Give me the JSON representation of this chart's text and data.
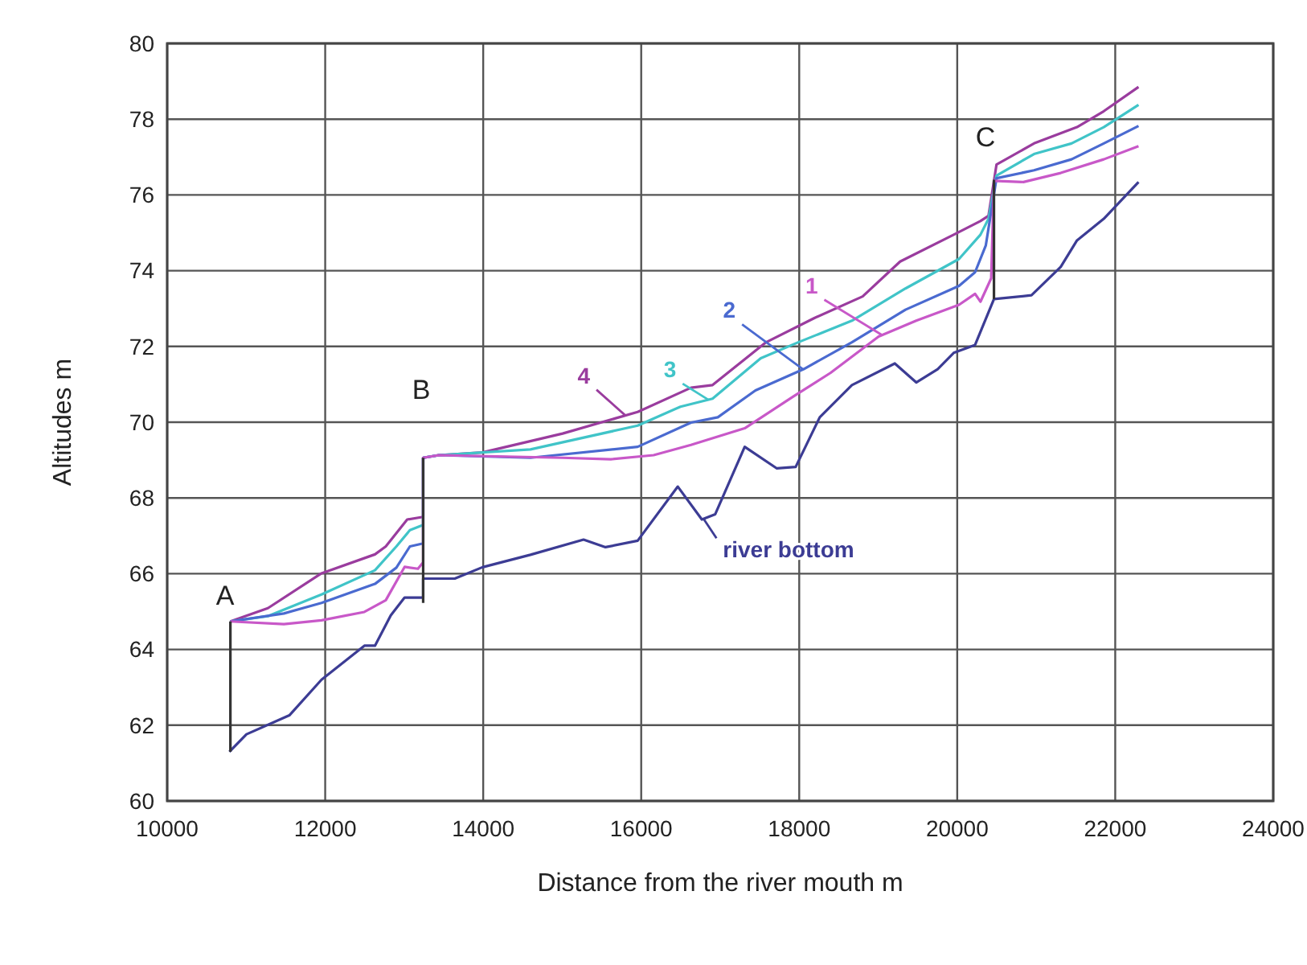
{
  "chart_data": {
    "type": "line",
    "xlabel": "Distance from the river mouth  m",
    "ylabel": "Altitudes  m",
    "xlim": [
      10000,
      24000
    ],
    "xticks": [
      10000,
      12000,
      14000,
      16000,
      18000,
      20000,
      22000,
      24000
    ],
    "ylim": [
      60,
      80
    ],
    "yticks": [
      60,
      62,
      64,
      66,
      68,
      70,
      72,
      74,
      76,
      78,
      80
    ],
    "grid": true,
    "marker": "none",
    "line_style": "solid",
    "series": [
      {
        "name": "4",
        "color": "#9a3c9e",
        "x": [
          10800,
          11275,
          11953,
          12630,
          12767,
          13038,
          13240,
          13240,
          13440,
          13990,
          15005,
          15955,
          16630,
          16903,
          17581,
          18192,
          18803,
          19277,
          19955,
          20294,
          20396,
          20497,
          20972,
          21516,
          21855,
          22295
        ],
        "values": [
          64.74,
          65.09,
          66.01,
          66.51,
          66.72,
          67.43,
          67.5,
          69.06,
          69.13,
          69.2,
          69.7,
          70.27,
          70.91,
          70.98,
          72.11,
          72.75,
          73.32,
          74.24,
          74.95,
          75.31,
          75.45,
          76.8,
          77.36,
          77.79,
          78.21,
          78.85
        ]
      },
      {
        "name": "3",
        "color": "#40c4c8",
        "x": [
          10800,
          11275,
          11953,
          12630,
          12901,
          13072,
          13240,
          13240,
          13440,
          14598,
          15955,
          16497,
          16903,
          17513,
          17988,
          18667,
          19345,
          20023,
          20294,
          20396,
          20497,
          20972,
          21447,
          21855,
          22295
        ],
        "values": [
          64.74,
          64.88,
          65.45,
          66.09,
          66.72,
          67.15,
          67.29,
          69.06,
          69.13,
          69.28,
          69.91,
          70.41,
          70.62,
          71.69,
          72.11,
          72.68,
          73.53,
          74.31,
          74.95,
          75.37,
          76.51,
          77.08,
          77.36,
          77.79,
          78.38
        ]
      },
      {
        "name": "2",
        "color": "#4a6ad0",
        "x": [
          10800,
          11477,
          11953,
          12630,
          12901,
          13072,
          13240,
          13240,
          13440,
          14598,
          15955,
          16630,
          16970,
          17446,
          18056,
          18667,
          19345,
          20023,
          20226,
          20362,
          20497,
          20972,
          21447,
          21855,
          22295
        ],
        "values": [
          64.74,
          64.95,
          65.23,
          65.73,
          66.16,
          66.72,
          66.8,
          69.06,
          69.13,
          69.06,
          69.35,
          69.99,
          70.13,
          70.84,
          71.4,
          72.11,
          72.97,
          73.6,
          73.96,
          74.67,
          76.44,
          76.65,
          76.94,
          77.36,
          77.82
        ]
      },
      {
        "name": "1",
        "color": "#c858c8",
        "x": [
          10800,
          11477,
          11953,
          12496,
          12767,
          13005,
          13174,
          13240,
          13240,
          13440,
          15005,
          15615,
          16157,
          16630,
          17310,
          17920,
          18395,
          19005,
          19481,
          20023,
          20226,
          20294,
          20430,
          20465,
          20838,
          21310,
          21855,
          22295
        ],
        "values": [
          64.74,
          64.67,
          64.77,
          64.99,
          65.3,
          66.18,
          66.13,
          66.3,
          69.06,
          69.13,
          69.06,
          69.02,
          69.13,
          69.4,
          69.84,
          70.67,
          71.3,
          72.26,
          72.68,
          73.1,
          73.39,
          73.18,
          73.8,
          76.37,
          76.34,
          76.58,
          76.94,
          77.29
        ]
      },
      {
        "name": "river bottom",
        "color": "#3c3c94",
        "x": [
          10787,
          11003,
          11546,
          11953,
          12496,
          12630,
          12830,
          13005,
          13240,
          13240,
          13640,
          13990,
          14598,
          15270,
          15548,
          15955,
          16463,
          16768,
          16937,
          17310,
          17717,
          17955,
          18260,
          18667,
          19210,
          19481,
          19752,
          19955,
          20226,
          20465,
          20940,
          21310,
          21516,
          21855,
          22295
        ],
        "values": [
          61.3,
          61.76,
          62.26,
          63.2,
          64.1,
          64.1,
          64.9,
          65.37,
          65.37,
          65.87,
          65.87,
          66.17,
          66.5,
          66.9,
          66.7,
          66.87,
          68.3,
          67.43,
          67.57,
          69.35,
          68.78,
          68.82,
          70.13,
          70.98,
          71.55,
          71.05,
          71.4,
          71.83,
          72.04,
          73.25,
          73.35,
          74.1,
          74.8,
          75.37,
          76.34
        ]
      },
      {
        "color": "#333333",
        "x": [
          10800,
          10800
        ],
        "values": [
          61.3,
          64.74
        ]
      },
      {
        "color": "#333333",
        "x": [
          13240,
          13240
        ],
        "values": [
          65.23,
          69.06
        ]
      },
      {
        "color": "#333333",
        "x": [
          20465,
          20465
        ],
        "values": [
          73.25,
          76.4
        ]
      }
    ],
    "annotations": [
      "A",
      "B",
      "C"
    ]
  }
}
